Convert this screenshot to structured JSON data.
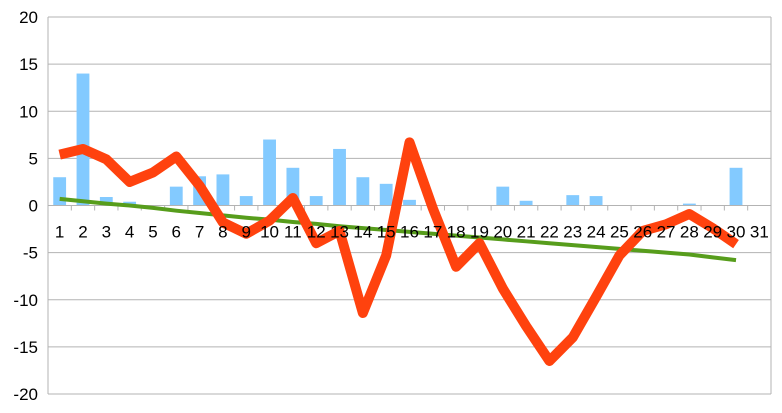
{
  "chart_data": {
    "type": "bar+line",
    "title": "",
    "xlabel": "",
    "ylabel": "",
    "ylim": [
      -20,
      20
    ],
    "yticks": [
      -20,
      -15,
      -10,
      -5,
      0,
      5,
      10,
      15,
      20
    ],
    "grid": "horizontal",
    "legend": "none",
    "categories": [
      "1",
      "2",
      "3",
      "4",
      "5",
      "6",
      "7",
      "8",
      "9",
      "10",
      "11",
      "12",
      "13",
      "14",
      "15",
      "16",
      "17",
      "18",
      "19",
      "20",
      "21",
      "22",
      "23",
      "24",
      "25",
      "26",
      "27",
      "28",
      "29",
      "30",
      "31"
    ],
    "series": [
      {
        "type": "bar",
        "color": "#83caff",
        "values": [
          3,
          14,
          0.9,
          0.4,
          0,
          2,
          3.1,
          3.3,
          1,
          7,
          4,
          1,
          6,
          3,
          2.3,
          0.6,
          0,
          0,
          0,
          2,
          0.5,
          0,
          1.1,
          1,
          0,
          0,
          0,
          0.2,
          0,
          4,
          0
        ]
      },
      {
        "type": "line",
        "color": "#ff420e",
        "values": [
          5.4,
          6.0,
          4.9,
          2.5,
          3.5,
          5.2,
          2.1,
          -1.8,
          -3,
          -1.6,
          0.8,
          -4,
          -2.7,
          -11.4,
          -5.3,
          6.7,
          -0.3,
          -6.5,
          -4,
          -8.8,
          -12.8,
          -16.5,
          -14,
          -9.7,
          -5.3,
          -2.7,
          -2,
          -0.9,
          -2.4,
          -4.1,
          null
        ]
      },
      {
        "type": "line",
        "color": "#579d1c",
        "role": "trend",
        "values": [
          0.7,
          0.45,
          0.2,
          0,
          -0.25,
          -0.55,
          -0.8,
          -1.05,
          -1.3,
          -1.5,
          -1.75,
          -1.95,
          -2.2,
          -2.4,
          -2.6,
          -2.8,
          -3,
          -3.2,
          -3.4,
          -3.6,
          -3.8,
          -4.0,
          -4.2,
          -4.4,
          -4.6,
          -4.8,
          -5.0,
          -5.2,
          -5.5,
          -5.8,
          null
        ]
      }
    ]
  }
}
